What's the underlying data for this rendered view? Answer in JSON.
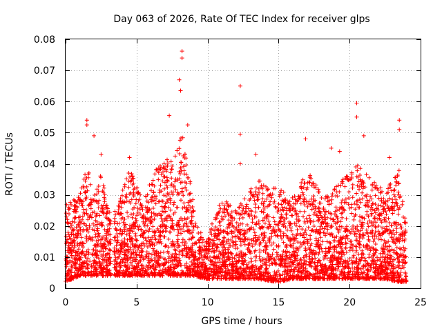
{
  "chart_data": {
    "type": "scatter",
    "title": "Day 063 of 2026, Rate Of TEC Index for receiver glps",
    "xlabel": "GPS time / hours",
    "ylabel": "ROTI / TECUs",
    "xlim": [
      0,
      25
    ],
    "ylim": [
      0,
      0.08
    ],
    "xticks": [
      0,
      5,
      10,
      15,
      20,
      25
    ],
    "xtick_labels": [
      "0",
      "5",
      "10",
      "15",
      "20",
      "25"
    ],
    "yticks": [
      0,
      0.01,
      0.02,
      0.03,
      0.04,
      0.05,
      0.06,
      0.07,
      0.08
    ],
    "ytick_labels": [
      "0",
      "0.01",
      "0.02",
      "0.03",
      "0.04",
      "0.05",
      "0.06",
      "0.07",
      "0.08"
    ],
    "grid": true,
    "marker": "plus",
    "series_color": "#ff0000",
    "data_x_range": [
      0,
      24
    ],
    "data_gap_hours": [
      3.2,
      3.4
    ],
    "notable_points": [
      {
        "x": 8.2,
        "y": 0.0762
      },
      {
        "x": 8.2,
        "y": 0.074
      },
      {
        "x": 8.0,
        "y": 0.067
      },
      {
        "x": 8.1,
        "y": 0.0635
      },
      {
        "x": 12.3,
        "y": 0.065
      },
      {
        "x": 12.3,
        "y": 0.0495
      },
      {
        "x": 20.5,
        "y": 0.0595
      },
      {
        "x": 20.5,
        "y": 0.055
      },
      {
        "x": 23.5,
        "y": 0.054
      },
      {
        "x": 23.5,
        "y": 0.051
      },
      {
        "x": 1.5,
        "y": 0.054
      },
      {
        "x": 1.5,
        "y": 0.0525
      },
      {
        "x": 2.0,
        "y": 0.049
      },
      {
        "x": 8.6,
        "y": 0.0525
      },
      {
        "x": 7.3,
        "y": 0.0555
      },
      {
        "x": 16.9,
        "y": 0.048
      },
      {
        "x": 18.7,
        "y": 0.045
      },
      {
        "x": 21.0,
        "y": 0.049
      },
      {
        "x": 4.5,
        "y": 0.042
      },
      {
        "x": 13.4,
        "y": 0.043
      },
      {
        "x": 2.5,
        "y": 0.043
      },
      {
        "x": 12.3,
        "y": 0.04
      },
      {
        "x": 22.8,
        "y": 0.042
      },
      {
        "x": 19.3,
        "y": 0.044
      }
    ],
    "envelope": [
      {
        "x": 0.0,
        "low": 0.002,
        "high": 0.028
      },
      {
        "x": 1.0,
        "low": 0.004,
        "high": 0.03
      },
      {
        "x": 1.5,
        "low": 0.004,
        "high": 0.04
      },
      {
        "x": 2.0,
        "low": 0.004,
        "high": 0.03
      },
      {
        "x": 2.5,
        "low": 0.004,
        "high": 0.038
      },
      {
        "x": 3.1,
        "low": 0.004,
        "high": 0.025
      },
      {
        "x": 3.5,
        "low": 0.004,
        "high": 0.025
      },
      {
        "x": 4.5,
        "low": 0.004,
        "high": 0.038
      },
      {
        "x": 5.5,
        "low": 0.004,
        "high": 0.03
      },
      {
        "x": 6.5,
        "low": 0.004,
        "high": 0.04
      },
      {
        "x": 7.5,
        "low": 0.004,
        "high": 0.042
      },
      {
        "x": 8.2,
        "low": 0.004,
        "high": 0.05
      },
      {
        "x": 9.0,
        "low": 0.004,
        "high": 0.028
      },
      {
        "x": 9.8,
        "low": 0.003,
        "high": 0.014
      },
      {
        "x": 11.0,
        "low": 0.003,
        "high": 0.03
      },
      {
        "x": 12.0,
        "low": 0.003,
        "high": 0.025
      },
      {
        "x": 13.5,
        "low": 0.003,
        "high": 0.035
      },
      {
        "x": 15.0,
        "low": 0.002,
        "high": 0.032
      },
      {
        "x": 16.0,
        "low": 0.003,
        "high": 0.03
      },
      {
        "x": 17.0,
        "low": 0.003,
        "high": 0.038
      },
      {
        "x": 18.5,
        "low": 0.003,
        "high": 0.03
      },
      {
        "x": 20.5,
        "low": 0.003,
        "high": 0.04
      },
      {
        "x": 21.5,
        "low": 0.003,
        "high": 0.035
      },
      {
        "x": 22.5,
        "low": 0.003,
        "high": 0.032
      },
      {
        "x": 23.5,
        "low": 0.002,
        "high": 0.038
      },
      {
        "x": 24.0,
        "low": 0.002,
        "high": 0.02
      }
    ]
  }
}
